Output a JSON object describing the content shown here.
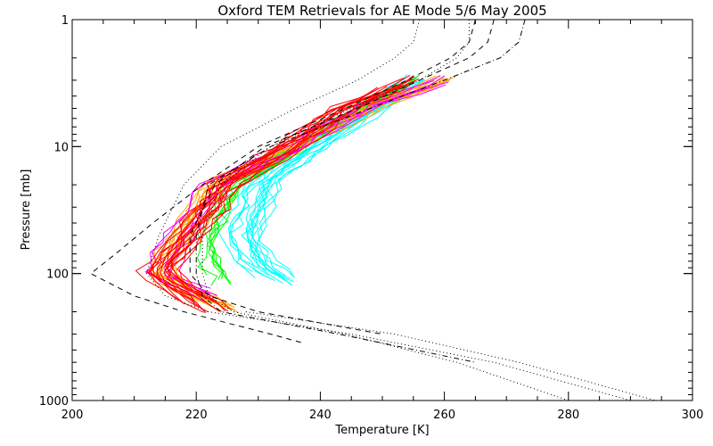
{
  "chart_data": {
    "type": "line",
    "title": "Oxford TEM Retrievals for AE Mode 5/6 May 2005",
    "xlabel": "Temperature [K]",
    "ylabel": "Pressure [mb]",
    "xlim": [
      200,
      300
    ],
    "ylim": [
      1000,
      1
    ],
    "yscale": "log",
    "x_ticks": [
      "200",
      "220",
      "240",
      "260",
      "280",
      "300"
    ],
    "x_tick_values": [
      200,
      220,
      240,
      260,
      280,
      300
    ],
    "y_ticks": [
      "1",
      "10",
      "100",
      "1000"
    ],
    "y_tick_values": [
      1,
      10,
      100,
      1000
    ],
    "grid": false,
    "colors": {
      "cyan": "#00ffff",
      "green": "#00ff00",
      "orange": "#ffa500",
      "magenta": "#ff00ff",
      "red": "#ff0000",
      "reference": "#000000"
    },
    "reference_profiles": [
      {
        "name": "ref-dotted-1",
        "style": "dotted",
        "p": [
          1,
          1.5,
          2,
          3,
          5,
          10,
          20,
          50,
          100,
          150,
          200,
          300,
          500,
          1000
        ],
        "t": [
          256,
          255,
          252,
          246,
          236,
          224,
          218,
          214,
          212,
          215,
          222,
          245,
          268,
          290
        ]
      },
      {
        "name": "ref-dashed-1",
        "style": "dashed",
        "p": [
          1,
          1.5,
          2,
          3,
          5,
          10,
          20,
          40,
          70,
          100,
          150,
          200,
          300,
          350
        ],
        "t": [
          265,
          264,
          261,
          254,
          244,
          230,
          221,
          213,
          207,
          203,
          210,
          218,
          232,
          237
        ]
      },
      {
        "name": "ref-dashdot-1",
        "style": "dashdot",
        "p": [
          1,
          1.5,
          2,
          3,
          5,
          10,
          20,
          50,
          100,
          150,
          200,
          300,
          500
        ],
        "t": [
          273,
          272,
          269,
          260,
          248,
          232,
          222,
          220,
          220,
          221,
          224,
          243,
          265
        ]
      },
      {
        "name": "ref-dashed-2",
        "style": "dashed",
        "p": [
          1,
          1.5,
          2,
          3,
          5,
          10,
          20,
          50,
          100,
          150,
          200,
          300
        ],
        "t": [
          268,
          267,
          264,
          256,
          246,
          231,
          223,
          219,
          219,
          222,
          230,
          250
        ]
      },
      {
        "name": "ref-dotted-2",
        "style": "dotted",
        "p": [
          1,
          1.5,
          2,
          3,
          5,
          10,
          20,
          50,
          100,
          150,
          200,
          300,
          500,
          1000
        ],
        "t": [
          264,
          264,
          262,
          256,
          245,
          232,
          224,
          221,
          221,
          222,
          226,
          244,
          262,
          280
        ]
      },
      {
        "name": "ref-dotted-3",
        "style": "dotted",
        "p": [
          200,
          300,
          500,
          1000
        ],
        "t": [
          228,
          252,
          272,
          294
        ]
      }
    ],
    "series": [
      {
        "name": "cyan",
        "color": "#00ffff",
        "count": 16,
        "t_at": {
          "3": 255,
          "5": 248,
          "10": 238,
          "20": 230,
          "50": 227,
          "80": 229,
          "110": 233
        },
        "spread": 4
      },
      {
        "name": "green",
        "color": "#00ff00",
        "count": 8,
        "t_at": {
          "3": 255,
          "5": 246,
          "10": 237,
          "20": 226,
          "50": 222,
          "80": 222,
          "110": 224
        },
        "spread": 3
      },
      {
        "name": "orange",
        "color": "#ffa500",
        "count": 12,
        "t_at": {
          "3": 260,
          "5": 248,
          "10": 236,
          "20": 223,
          "50": 218,
          "100": 214,
          "180": 224
        },
        "spread": 3.5
      },
      {
        "name": "magenta",
        "color": "#ff00ff",
        "count": 6,
        "t_at": {
          "3": 260,
          "5": 247,
          "10": 236,
          "20": 223,
          "50": 217,
          "100": 214,
          "150": 222
        },
        "spread": 3
      },
      {
        "name": "red",
        "color": "#ff0000",
        "count": 16,
        "t_at": {
          "3": 255,
          "5": 244,
          "10": 235,
          "20": 225,
          "50": 219,
          "100": 214,
          "180": 222
        },
        "spread": 3.5
      }
    ]
  }
}
